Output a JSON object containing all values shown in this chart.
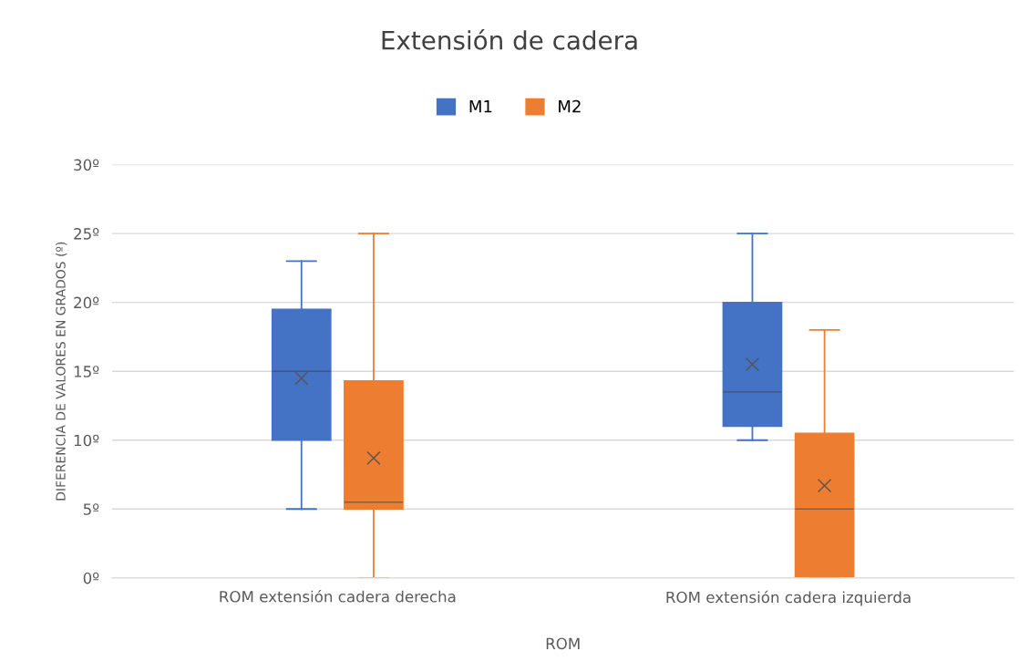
{
  "chart_data": {
    "type": "box",
    "title": "Extensión de cadera",
    "xlabel": "ROM",
    "ylabel": "DIFERENCIA DE VALORES EN GRADOS (º)",
    "categories": [
      "ROM extensión cadera derecha",
      "ROM extensión cadera izquierda"
    ],
    "series": [
      {
        "name": "M1",
        "color": "#4472c4",
        "boxes": [
          {
            "low": 5,
            "q1": 10,
            "median": 15,
            "q3": 19.5,
            "high": 23,
            "mean": 14.5
          },
          {
            "low": 10,
            "q1": 11,
            "median": 13.5,
            "q3": 20,
            "high": 25,
            "mean": 15.5
          }
        ]
      },
      {
        "name": "M2",
        "color": "#ed7d31",
        "boxes": [
          {
            "low": 0,
            "q1": 5,
            "median": 5.5,
            "q3": 14.3,
            "high": 25,
            "mean": 8.7
          },
          {
            "low": 0,
            "q1": 0.1,
            "median": 5,
            "q3": 10.5,
            "high": 18,
            "mean": 6.7
          }
        ]
      }
    ],
    "ylim": [
      0,
      30
    ],
    "yticks": [
      {
        "value": 0,
        "label": "0º"
      },
      {
        "value": 5,
        "label": "5º"
      },
      {
        "value": 10,
        "label": "10º"
      },
      {
        "value": 15,
        "label": "15º"
      },
      {
        "value": 20,
        "label": "20º"
      },
      {
        "value": 25,
        "label": "25º"
      },
      {
        "value": 30,
        "label": "30º"
      }
    ],
    "grid": "y",
    "legend": "top",
    "marker": "cross"
  }
}
